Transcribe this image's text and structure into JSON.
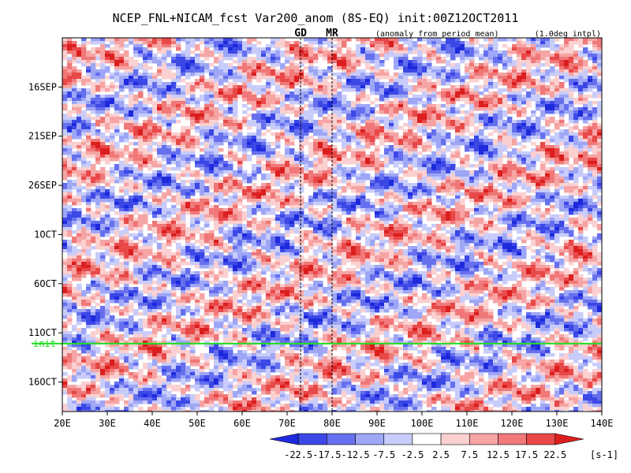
{
  "chart_data": {
    "type": "heatmap",
    "title": "NCEP_FNL+NICAM_fcst Var200_anom (8S-EQ) init:00Z12OCT2011",
    "subtitle_left": "(anomaly from period mean)",
    "subtitle_right": "(1.0deg intpl)",
    "xlabel": "",
    "ylabel": "",
    "x_ticks": [
      {
        "value": 20,
        "label": "20E"
      },
      {
        "value": 30,
        "label": "30E"
      },
      {
        "value": 40,
        "label": "40E"
      },
      {
        "value": 50,
        "label": "50E"
      },
      {
        "value": 60,
        "label": "60E"
      },
      {
        "value": 70,
        "label": "70E"
      },
      {
        "value": 80,
        "label": "80E"
      },
      {
        "value": 90,
        "label": "90E"
      },
      {
        "value": 100,
        "label": "100E"
      },
      {
        "value": 110,
        "label": "110E"
      },
      {
        "value": 120,
        "label": "120E"
      },
      {
        "value": 130,
        "label": "130E"
      },
      {
        "value": 140,
        "label": "140E"
      }
    ],
    "xlim": [
      20,
      140
    ],
    "y_ticks": [
      {
        "day": 5,
        "label": "16SEP"
      },
      {
        "day": 10,
        "label": "21SEP"
      },
      {
        "day": 15,
        "label": "26SEP"
      },
      {
        "day": 20,
        "label": "1OCT"
      },
      {
        "day": 25,
        "label": "6OCT"
      },
      {
        "day": 30,
        "label": "11OCT"
      },
      {
        "day": 35,
        "label": "16OCT"
      }
    ],
    "ylim_days": [
      0,
      38
    ],
    "init_line": {
      "day": 31.1,
      "label": "init",
      "color": "#22dd22"
    },
    "markers": [
      {
        "label": "GD",
        "lon": 73
      },
      {
        "label": "MR",
        "lon": 80
      }
    ],
    "marker_color": "#e02020",
    "colorbar": {
      "ticks": [
        "-22.5",
        "-17.5",
        "-12.5",
        "-7.5",
        "-2.5",
        "2.5",
        "7.5",
        "12.5",
        "17.5",
        "22.5"
      ],
      "unit": "[s-1]",
      "colors": [
        "#1e2adc",
        "#3c48e6",
        "#6670ee",
        "#9ea6f6",
        "#c8ccfa",
        "#ffffff",
        "#fbd0d0",
        "#f6a4a4",
        "#f07878",
        "#e84848",
        "#dc1e1e"
      ]
    },
    "grid": false
  }
}
